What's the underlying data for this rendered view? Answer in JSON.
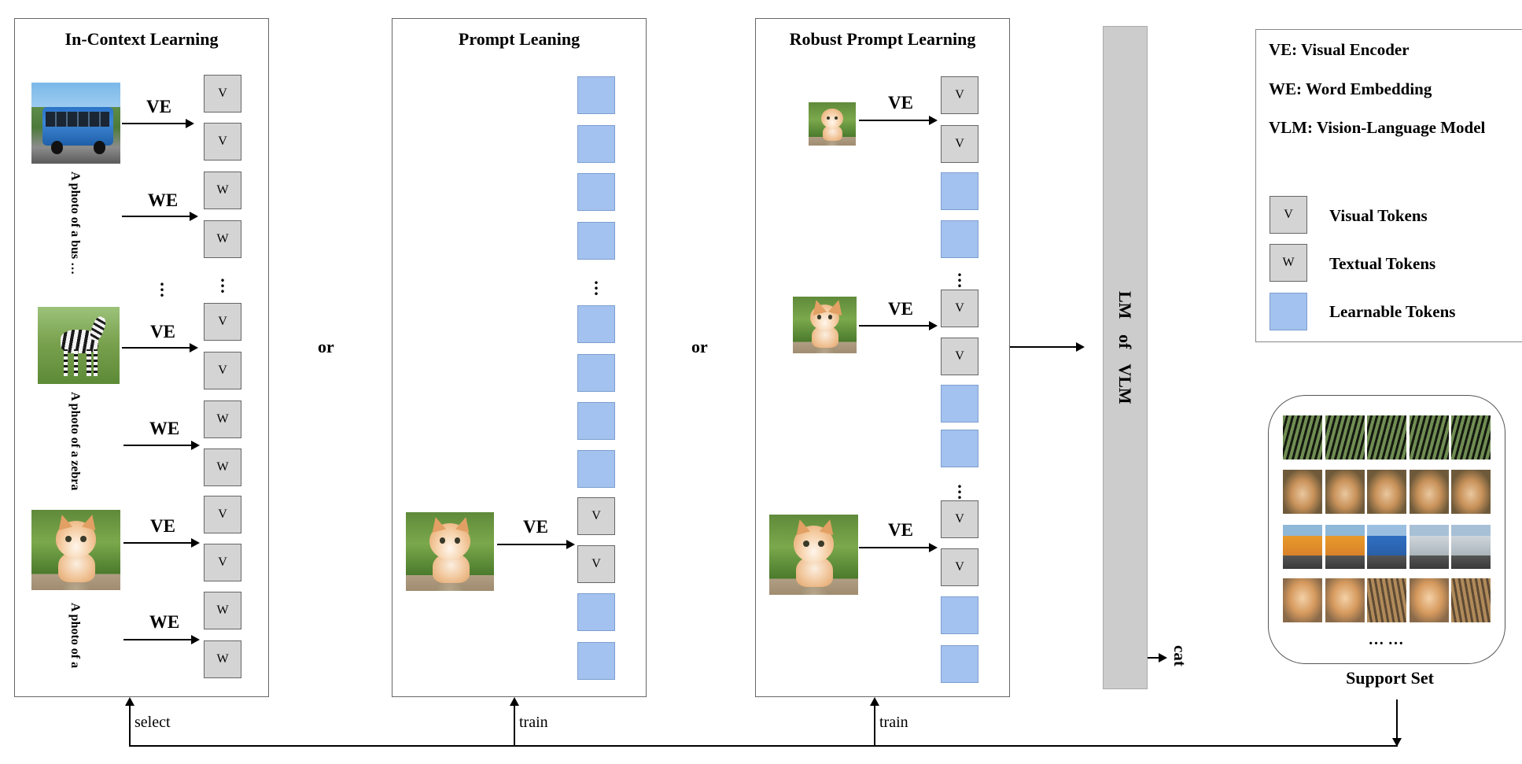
{
  "panels": {
    "icl": {
      "title": "In-Context Learning",
      "captions": [
        "A photo of a bus …",
        "A photo of a zebra",
        "A photo of a"
      ],
      "labels": {
        "ve": "VE",
        "we": "WE"
      }
    },
    "prompt": {
      "title": "Prompt Leaning",
      "labels": {
        "ve": "VE"
      }
    },
    "robust": {
      "title": "Robust Prompt Learning",
      "labels": {
        "ve": "VE"
      }
    }
  },
  "tokens": {
    "visual": "V",
    "textual": "W"
  },
  "connectors": {
    "or": "or"
  },
  "vlm_bar": {
    "label": "LM of VLM",
    "output": "cat"
  },
  "legend": {
    "abbreviations": [
      "VE: Visual Encoder",
      "WE: Word Embedding",
      "VLM: Vision-Language Model"
    ],
    "token_types": [
      {
        "symbol": "V",
        "label": "Visual Tokens",
        "color": "#d4d4d4"
      },
      {
        "symbol": "W",
        "label": "Textual Tokens",
        "color": "#d4d4d4"
      },
      {
        "symbol": "",
        "label": "Learnable Tokens",
        "color": "#a4c2ef"
      }
    ]
  },
  "support_set": {
    "label": "Support Set",
    "ellipsis": "… …",
    "rows": [
      "zebra",
      "dog",
      "bus",
      "cat"
    ]
  },
  "feedback": {
    "select": "select",
    "train1": "train",
    "train2": "train"
  },
  "images": {
    "bus": "bus-photo",
    "zebra": "zebra-photo",
    "cat": "kitten-photo"
  }
}
